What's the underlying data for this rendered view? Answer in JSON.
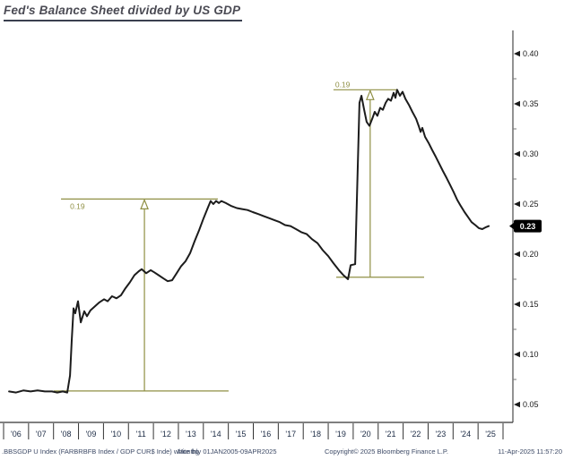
{
  "title": "Fed's Balance Sheet divided by US GDP",
  "footer": {
    "ticker_info": ".BBSGDP U Index (FARBRBFB Index / GDP CUR$ Inde) white bg",
    "periodicity": "Monthly 01JAN2005-09APR2025",
    "copyright": "Copyright© 2025 Bloomberg Finance L.P.",
    "timestamp": "11-Apr-2025 11:57:20"
  },
  "chart_data": {
    "type": "line",
    "title": "Fed's Balance Sheet divided by US GDP",
    "x_axis": {
      "labels": [
        "'06",
        "'07",
        "'08",
        "'09",
        "'10",
        "'11",
        "'12",
        "'13",
        "'14",
        "'15",
        "'16",
        "'17",
        "'18",
        "'19",
        "'20",
        "'21",
        "'22",
        "'23",
        "'24",
        "'25"
      ],
      "start_year": 2006,
      "end_year": 2026
    },
    "y_axis": {
      "major_ticks": [
        0.4,
        0.35,
        0.3,
        0.25,
        0.2,
        0.15,
        0.1,
        0.05
      ],
      "minor_ticks": [
        0.375,
        0.325,
        0.275,
        0.225,
        0.175,
        0.125,
        0.075
      ],
      "range": [
        0.04,
        0.42
      ],
      "side": "right",
      "last_value": {
        "label": "0.23",
        "value": 0.228
      }
    },
    "grid": "off",
    "legend": "none",
    "series": [
      {
        "points": [
          [
            2006.22,
            0.063
          ],
          [
            2006.5,
            0.062
          ],
          [
            2006.79,
            0.064
          ],
          [
            2007.08,
            0.063
          ],
          [
            2007.36,
            0.064
          ],
          [
            2007.65,
            0.063
          ],
          [
            2007.94,
            0.063
          ],
          [
            2008.15,
            0.062
          ],
          [
            2008.37,
            0.063
          ],
          [
            2008.55,
            0.062
          ],
          [
            2008.66,
            0.079
          ],
          [
            2008.73,
            0.114
          ],
          [
            2008.8,
            0.146
          ],
          [
            2008.87,
            0.141
          ],
          [
            2008.98,
            0.153
          ],
          [
            2009.09,
            0.132
          ],
          [
            2009.23,
            0.143
          ],
          [
            2009.34,
            0.138
          ],
          [
            2009.48,
            0.144
          ],
          [
            2009.66,
            0.148
          ],
          [
            2009.84,
            0.152
          ],
          [
            2010.02,
            0.155
          ],
          [
            2010.17,
            0.153
          ],
          [
            2010.34,
            0.158
          ],
          [
            2010.52,
            0.156
          ],
          [
            2010.7,
            0.159
          ],
          [
            2010.88,
            0.166
          ],
          [
            2011.06,
            0.172
          ],
          [
            2011.24,
            0.179
          ],
          [
            2011.42,
            0.183
          ],
          [
            2011.53,
            0.185
          ],
          [
            2011.71,
            0.181
          ],
          [
            2011.89,
            0.184
          ],
          [
            2012.03,
            0.182
          ],
          [
            2012.21,
            0.179
          ],
          [
            2012.39,
            0.176
          ],
          [
            2012.57,
            0.173
          ],
          [
            2012.75,
            0.174
          ],
          [
            2012.93,
            0.181
          ],
          [
            2013.11,
            0.188
          ],
          [
            2013.29,
            0.193
          ],
          [
            2013.47,
            0.201
          ],
          [
            2013.65,
            0.213
          ],
          [
            2013.83,
            0.224
          ],
          [
            2014.01,
            0.236
          ],
          [
            2014.19,
            0.247
          ],
          [
            2014.29,
            0.253
          ],
          [
            2014.4,
            0.25
          ],
          [
            2014.51,
            0.253
          ],
          [
            2014.62,
            0.251
          ],
          [
            2014.72,
            0.253
          ],
          [
            2014.9,
            0.251
          ],
          [
            2015.12,
            0.248
          ],
          [
            2015.34,
            0.246
          ],
          [
            2015.55,
            0.245
          ],
          [
            2015.77,
            0.244
          ],
          [
            2015.98,
            0.242
          ],
          [
            2016.2,
            0.24
          ],
          [
            2016.41,
            0.238
          ],
          [
            2016.63,
            0.236
          ],
          [
            2016.84,
            0.234
          ],
          [
            2017.06,
            0.232
          ],
          [
            2017.27,
            0.229
          ],
          [
            2017.49,
            0.228
          ],
          [
            2017.71,
            0.225
          ],
          [
            2017.92,
            0.222
          ],
          [
            2018.14,
            0.22
          ],
          [
            2018.35,
            0.215
          ],
          [
            2018.57,
            0.211
          ],
          [
            2018.78,
            0.204
          ],
          [
            2019.0,
            0.198
          ],
          [
            2019.21,
            0.191
          ],
          [
            2019.43,
            0.184
          ],
          [
            2019.61,
            0.179
          ],
          [
            2019.79,
            0.175
          ],
          [
            2019.9,
            0.189
          ],
          [
            2020.08,
            0.19
          ],
          [
            2020.18,
            0.284
          ],
          [
            2020.25,
            0.351
          ],
          [
            2020.33,
            0.358
          ],
          [
            2020.43,
            0.345
          ],
          [
            2020.54,
            0.332
          ],
          [
            2020.65,
            0.328
          ],
          [
            2020.76,
            0.335
          ],
          [
            2020.86,
            0.342
          ],
          [
            2020.97,
            0.338
          ],
          [
            2021.08,
            0.346
          ],
          [
            2021.19,
            0.344
          ],
          [
            2021.3,
            0.351
          ],
          [
            2021.4,
            0.355
          ],
          [
            2021.51,
            0.353
          ],
          [
            2021.62,
            0.361
          ],
          [
            2021.69,
            0.356
          ],
          [
            2021.76,
            0.364
          ],
          [
            2021.87,
            0.358
          ],
          [
            2021.98,
            0.362
          ],
          [
            2022.09,
            0.355
          ],
          [
            2022.23,
            0.349
          ],
          [
            2022.37,
            0.342
          ],
          [
            2022.52,
            0.335
          ],
          [
            2022.62,
            0.328
          ],
          [
            2022.7,
            0.322
          ],
          [
            2022.77,
            0.326
          ],
          [
            2022.88,
            0.317
          ],
          [
            2023.02,
            0.311
          ],
          [
            2023.16,
            0.304
          ],
          [
            2023.31,
            0.297
          ],
          [
            2023.45,
            0.29
          ],
          [
            2023.59,
            0.283
          ],
          [
            2023.74,
            0.276
          ],
          [
            2023.88,
            0.269
          ],
          [
            2024.02,
            0.262
          ],
          [
            2024.17,
            0.254
          ],
          [
            2024.31,
            0.248
          ],
          [
            2024.46,
            0.242
          ],
          [
            2024.6,
            0.237
          ],
          [
            2024.74,
            0.232
          ],
          [
            2024.89,
            0.229
          ],
          [
            2025.03,
            0.226
          ],
          [
            2025.17,
            0.225
          ],
          [
            2025.32,
            0.227
          ],
          [
            2025.43,
            0.228
          ]
        ]
      }
    ],
    "annotations": [
      {
        "label": "0.19",
        "top_line": {
          "value": 0.255,
          "from_year": 2008.3,
          "to_year": 2014.58
        },
        "bottom_line": {
          "value": 0.0635,
          "from_year": 2008.01,
          "to_year": 2015.01
        },
        "arrow_year": 2011.64,
        "label_year": 2008.66,
        "label_position": "below_top_line"
      },
      {
        "label": "0.19",
        "top_line": {
          "value": 0.364,
          "from_year": 2019.21,
          "to_year": 2021.76
        },
        "bottom_line": {
          "value": 0.177,
          "from_year": 2019.32,
          "to_year": 2022.84
        },
        "arrow_year": 2020.68,
        "label_year": 2019.28,
        "label_position": "above_top_line"
      }
    ],
    "colors": {
      "line": "#1c1c1c",
      "annotation": "#8f8f44",
      "badge_bg": "#000000",
      "badge_text": "#ffffff",
      "axis": "#4a4a4a",
      "x_label": "#1c2b45",
      "y_label": "#1a1a1a"
    }
  }
}
